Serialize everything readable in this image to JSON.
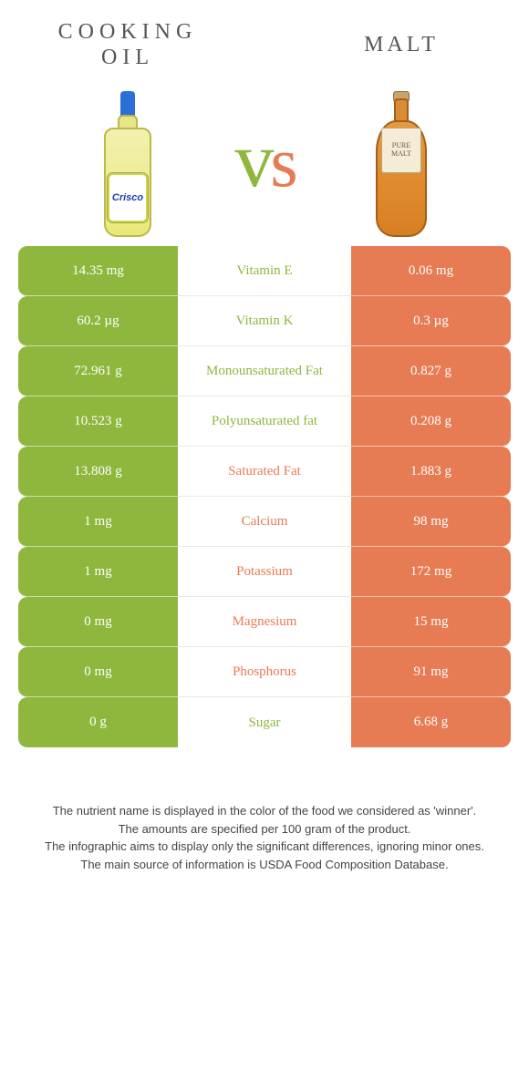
{
  "colors": {
    "left": "#8fb73e",
    "right": "#e77b53"
  },
  "left": {
    "title": "Cooking\nOil",
    "product_label": "Crisco"
  },
  "right": {
    "title": "Malt",
    "product_label": "PURE MALT"
  },
  "vs": "vs",
  "rows": [
    {
      "name": "Vitamin E",
      "left": "14.35 mg",
      "right": "0.06 mg",
      "winner": "left"
    },
    {
      "name": "Vitamin K",
      "left": "60.2 µg",
      "right": "0.3 µg",
      "winner": "left"
    },
    {
      "name": "Monounsaturated Fat",
      "left": "72.961 g",
      "right": "0.827 g",
      "winner": "left"
    },
    {
      "name": "Polyunsaturated fat",
      "left": "10.523 g",
      "right": "0.208 g",
      "winner": "left"
    },
    {
      "name": "Saturated Fat",
      "left": "13.808 g",
      "right": "1.883 g",
      "winner": "right"
    },
    {
      "name": "Calcium",
      "left": "1 mg",
      "right": "98 mg",
      "winner": "right"
    },
    {
      "name": "Potassium",
      "left": "1 mg",
      "right": "172 mg",
      "winner": "right"
    },
    {
      "name": "Magnesium",
      "left": "0 mg",
      "right": "15 mg",
      "winner": "right"
    },
    {
      "name": "Phosphorus",
      "left": "0 mg",
      "right": "91 mg",
      "winner": "right"
    },
    {
      "name": "Sugar",
      "left": "0 g",
      "right": "6.68 g",
      "winner": "left"
    }
  ],
  "footer_lines": [
    "The nutrient name is displayed in the color of the food we considered as 'winner'.",
    "The amounts are specified per 100 gram of the product.",
    "The infographic aims to display only the significant differences, ignoring minor ones.",
    "The main source of information is USDA Food Composition Database."
  ]
}
